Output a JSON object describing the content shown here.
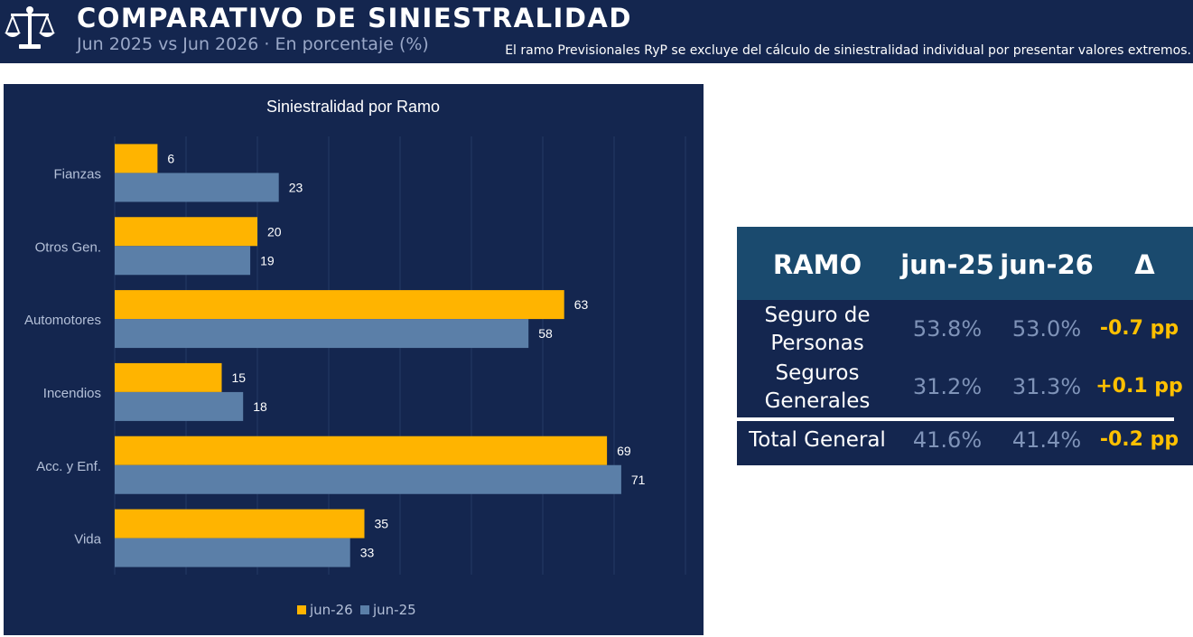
{
  "header": {
    "title": "COMPARATIVO DE SINIESTRALIDAD",
    "subtitle": "Jun 2025 vs Jun 2026 · En porcentaje (%)",
    "note": "El ramo Previsionales RyP se excluye del cálculo de siniestralidad individual por presentar valores extremos.",
    "logo_icon": "balance-scale-icon"
  },
  "chart_data": {
    "type": "bar",
    "orientation": "horizontal",
    "title": "Siniestralidad por Ramo",
    "categories": [
      "Fianzas",
      "Otros Gen.",
      "Automotores",
      "Incendios",
      "Acc. y Enf.",
      "Vida"
    ],
    "series": [
      {
        "name": "jun-26",
        "values": [
          6,
          20,
          63,
          15,
          69,
          35
        ],
        "color": "#ffb400"
      },
      {
        "name": "jun-25",
        "values": [
          23,
          19,
          58,
          18,
          71,
          33
        ],
        "color": "#5b7fa8"
      }
    ],
    "xlim": [
      0,
      80
    ],
    "grid": true,
    "legend": "bottom"
  },
  "table": {
    "headers": [
      "RAMO",
      "jun-25",
      "jun-26",
      "Δ"
    ],
    "rows": [
      {
        "name": [
          "Seguro de",
          "Personas"
        ],
        "jun25": "53.8%",
        "jun26": "53.0%",
        "delta": "-0.7 pp"
      },
      {
        "name": [
          "Seguros",
          "Generales"
        ],
        "jun25": "31.2%",
        "jun26": "31.3%",
        "delta": "+0.1 pp"
      }
    ],
    "total": {
      "name": "Total General",
      "jun25": "41.6%",
      "jun26": "41.4%",
      "delta": "-0.2 pp"
    }
  }
}
